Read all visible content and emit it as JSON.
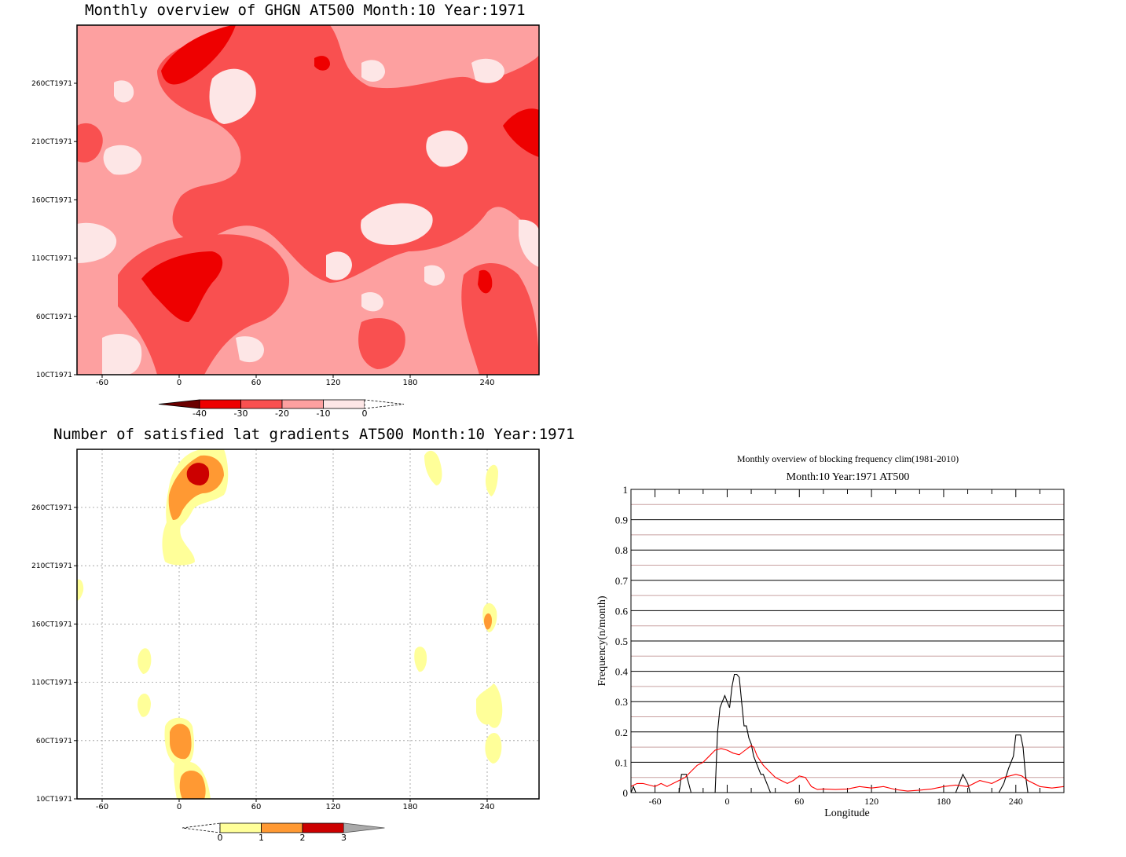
{
  "panels": {
    "ghgn": {
      "title": "Monthly overview of GHGN AT500 Month:10 Year:1971",
      "y_ticks": [
        "10CT1971",
        "60CT1971",
        "110CT1971",
        "160CT1971",
        "210CT1971",
        "260CT1971"
      ],
      "x_ticks": [
        "-60",
        "0",
        "60",
        "120",
        "180",
        "240"
      ],
      "colorbar": {
        "labels": [
          "-40",
          "-30",
          "-20",
          "-10",
          "0"
        ],
        "colors": [
          "#6b0000",
          "#ee0000",
          "#f95050",
          "#fda0a0",
          "#fde6e6",
          "#ffffff"
        ]
      },
      "fill_colors": {
        "base": "#fda0a0",
        "light": "#fde6e6",
        "mid": "#f95050",
        "dark": "#ee0000"
      }
    },
    "lat_gradients": {
      "title": "Number of satisfied lat gradients AT500 Month:10 Year:1971",
      "y_ticks": [
        "10CT1971",
        "60CT1971",
        "110CT1971",
        "160CT1971",
        "210CT1971",
        "260CT1971"
      ],
      "x_ticks": [
        "-60",
        "0",
        "60",
        "120",
        "180",
        "240"
      ],
      "colorbar": {
        "labels": [
          "0",
          "1",
          "2",
          "3"
        ],
        "colors": [
          "#ffffff",
          "#ffff99",
          "#ff9933",
          "#cc0000",
          "#aaaaaa"
        ]
      },
      "fill_colors": {
        "c1": "#ffff99",
        "c2": "#ff9933",
        "c3": "#cc0000"
      }
    }
  },
  "chart_data": {
    "type": "line",
    "title": "Monthly overview of blocking frequency clim(1981-2010)",
    "subtitle": "Month:10 Year:1971  AT500",
    "xlabel": "Longitude",
    "ylabel": "Frequency(n/month)",
    "xlim": [
      -80,
      280
    ],
    "ylim": [
      0,
      1
    ],
    "x_ticks": [
      -60,
      0,
      60,
      120,
      180,
      240
    ],
    "y_ticks": [
      0,
      0.1,
      0.2,
      0.3,
      0.4,
      0.5,
      0.6,
      0.7,
      0.8,
      0.9,
      1
    ],
    "y_tick_labels": [
      "0",
      "0.1",
      "0.2",
      "0.3",
      "0.4",
      "0.5",
      "0.6",
      "0.7",
      "0.8",
      "0.9",
      "1"
    ],
    "x_tick_labels": [
      "-60",
      "0",
      "60",
      "120",
      "180",
      "240"
    ],
    "grid": true,
    "series": [
      {
        "color": "#000000",
        "x": [
          -80,
          -78,
          -76,
          -74,
          -40,
          -38,
          -34,
          -30,
          -10,
          -8,
          -6,
          -4,
          -2,
          0,
          2,
          4,
          6,
          8,
          10,
          12,
          14,
          16,
          18,
          20,
          22,
          24,
          26,
          28,
          30,
          32,
          34,
          36,
          190,
          192,
          196,
          200,
          202,
          226,
          230,
          234,
          238,
          240,
          244,
          246,
          248,
          250,
          280
        ],
        "y": [
          0,
          0.02,
          0,
          0,
          0,
          0.06,
          0.06,
          0,
          0,
          0.2,
          0.28,
          0.3,
          0.32,
          0.3,
          0.28,
          0.35,
          0.39,
          0.39,
          0.38,
          0.3,
          0.22,
          0.22,
          0.18,
          0.16,
          0.12,
          0.1,
          0.08,
          0.06,
          0.06,
          0.04,
          0.02,
          0,
          0,
          0.02,
          0.06,
          0.03,
          0,
          0,
          0.03,
          0.08,
          0.12,
          0.19,
          0.19,
          0.15,
          0.06,
          0,
          0
        ]
      },
      {
        "color": "#ff0000",
        "x": [
          -80,
          -75,
          -70,
          -65,
          -60,
          -55,
          -50,
          -45,
          -40,
          -35,
          -30,
          -25,
          -20,
          -15,
          -10,
          -5,
          0,
          5,
          10,
          15,
          20,
          22,
          25,
          30,
          35,
          40,
          45,
          50,
          55,
          60,
          65,
          70,
          75,
          80,
          90,
          100,
          110,
          120,
          130,
          140,
          150,
          160,
          170,
          180,
          190,
          200,
          210,
          220,
          230,
          240,
          245,
          250,
          260,
          270,
          280
        ],
        "y": [
          0.02,
          0.03,
          0.03,
          0.025,
          0.02,
          0.03,
          0.02,
          0.03,
          0.04,
          0.05,
          0.07,
          0.09,
          0.1,
          0.12,
          0.14,
          0.145,
          0.14,
          0.13,
          0.125,
          0.14,
          0.155,
          0.15,
          0.12,
          0.09,
          0.07,
          0.05,
          0.04,
          0.03,
          0.04,
          0.055,
          0.05,
          0.02,
          0.01,
          0.012,
          0.01,
          0.012,
          0.02,
          0.015,
          0.02,
          0.01,
          0.005,
          0.008,
          0.012,
          0.02,
          0.025,
          0.02,
          0.04,
          0.03,
          0.05,
          0.06,
          0.055,
          0.04,
          0.02,
          0.015,
          0.02
        ]
      }
    ]
  }
}
